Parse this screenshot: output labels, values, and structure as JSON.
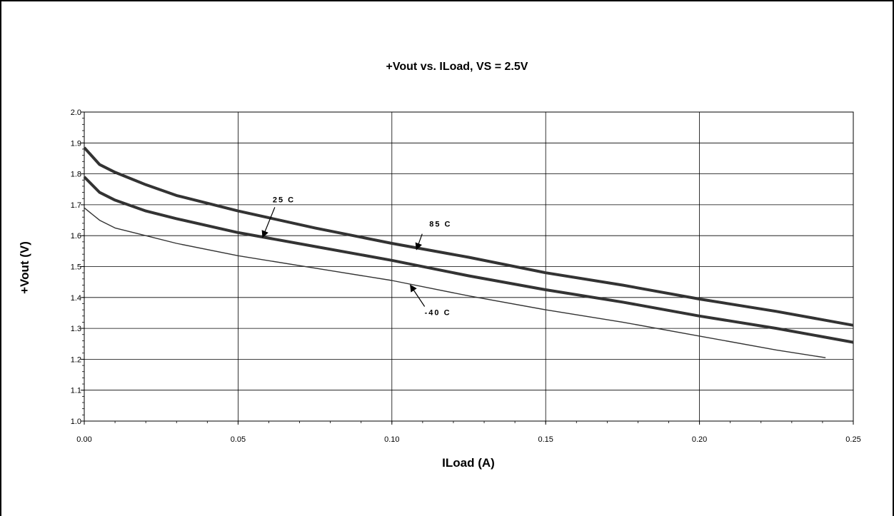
{
  "chart_data": {
    "type": "line",
    "title": "+Vout vs. ILoad, VS = 2.5V",
    "xlabel": "ILoad (A)",
    "ylabel": "+Vout (V)",
    "xlim": [
      0,
      0.25
    ],
    "ylim": [
      1.0,
      2.0
    ],
    "x_ticks": [
      "0.00",
      "0.05",
      "0.10",
      "0.15",
      "0.20",
      "0.25"
    ],
    "y_ticks": [
      "1.0",
      "1.1",
      "1.2",
      "1.3",
      "1.4",
      "1.5",
      "1.6",
      "1.7",
      "1.8",
      "1.9",
      "2.0"
    ],
    "grid": true,
    "legend": "none",
    "series": [
      {
        "name": "85 C",
        "x": [
          0,
          0.005,
          0.01,
          0.02,
          0.03,
          0.05,
          0.075,
          0.1,
          0.125,
          0.15,
          0.175,
          0.2,
          0.225,
          0.25
        ],
        "y": [
          1.885,
          1.83,
          1.805,
          1.765,
          1.73,
          1.68,
          1.625,
          1.575,
          1.53,
          1.48,
          1.44,
          1.395,
          1.355,
          1.31
        ]
      },
      {
        "name": "25 C",
        "x": [
          0,
          0.005,
          0.01,
          0.02,
          0.03,
          0.05,
          0.075,
          0.1,
          0.125,
          0.15,
          0.175,
          0.2,
          0.225,
          0.25
        ],
        "y": [
          1.79,
          1.74,
          1.715,
          1.68,
          1.655,
          1.61,
          1.565,
          1.52,
          1.47,
          1.425,
          1.385,
          1.34,
          1.3,
          1.255
        ]
      },
      {
        "name": "-40 C",
        "x": [
          0,
          0.005,
          0.01,
          0.02,
          0.03,
          0.05,
          0.075,
          0.1,
          0.125,
          0.15,
          0.175,
          0.2,
          0.225,
          0.241
        ],
        "y": [
          1.69,
          1.65,
          1.625,
          1.6,
          1.575,
          1.535,
          1.495,
          1.455,
          1.405,
          1.36,
          1.32,
          1.275,
          1.23,
          1.205
        ]
      }
    ],
    "annotations": [
      {
        "text": "85 C",
        "target_x": 0.108,
        "target_y": 1.555
      },
      {
        "text": "25 C",
        "target_x": 0.058,
        "target_y": 1.595
      },
      {
        "text": "-40 C",
        "target_x": 0.106,
        "target_y": 1.44
      }
    ]
  }
}
